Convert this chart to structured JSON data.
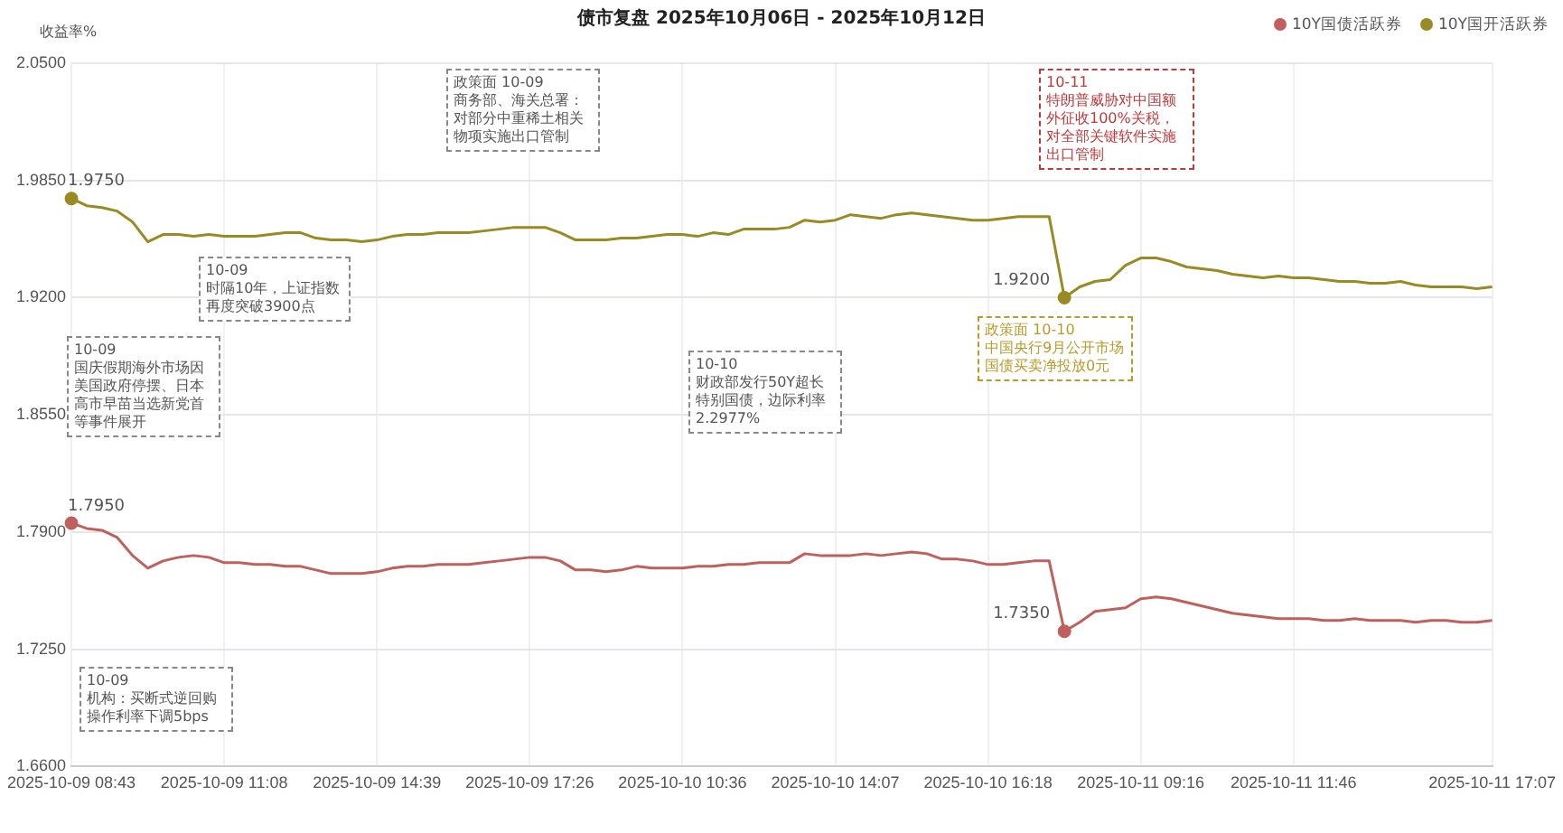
{
  "chart_data": {
    "type": "line",
    "title": "债市复盘 2025年10月06日 - 2025年10月12日",
    "ylabel": "收益率%",
    "categories": [
      "2025-10-09 08:43",
      null,
      null,
      null,
      null,
      null,
      null,
      null,
      null,
      null,
      "2025-10-09 11:08",
      null,
      null,
      null,
      null,
      null,
      null,
      null,
      null,
      null,
      "2025-10-09 14:39",
      null,
      null,
      null,
      null,
      null,
      null,
      null,
      null,
      null,
      "2025-10-09 17:26",
      null,
      null,
      null,
      null,
      null,
      null,
      null,
      null,
      null,
      "2025-10-10 10:36",
      null,
      null,
      null,
      null,
      null,
      null,
      null,
      null,
      null,
      "2025-10-10 14:07",
      null,
      null,
      null,
      null,
      null,
      null,
      null,
      null,
      null,
      "2025-10-10 16:18",
      null,
      null,
      null,
      null,
      null,
      null,
      null,
      null,
      null,
      "2025-10-11 09:16",
      null,
      null,
      null,
      null,
      null,
      null,
      null,
      null,
      null,
      "2025-10-11 11:46",
      null,
      null,
      null,
      null,
      null,
      null,
      null,
      null,
      null,
      null,
      null,
      null,
      "2025-10-11 17:07"
    ],
    "series": [
      {
        "name": "10Y国债活跃券",
        "color": "#c0605c",
        "values": [
          1.795,
          1.792,
          1.791,
          1.787,
          1.777,
          1.77,
          1.774,
          1.776,
          1.777,
          1.776,
          1.773,
          1.773,
          1.772,
          1.772,
          1.771,
          1.771,
          1.769,
          1.767,
          1.767,
          1.767,
          1.768,
          1.77,
          1.771,
          1.771,
          1.772,
          1.772,
          1.772,
          1.773,
          1.774,
          1.775,
          1.776,
          1.776,
          1.774,
          1.769,
          1.769,
          1.768,
          1.769,
          1.771,
          1.77,
          1.77,
          1.77,
          1.771,
          1.771,
          1.772,
          1.772,
          1.773,
          1.773,
          1.773,
          1.778,
          1.777,
          1.777,
          1.777,
          1.778,
          1.777,
          1.778,
          1.779,
          1.778,
          1.775,
          1.775,
          1.774,
          1.772,
          1.772,
          1.773,
          1.774,
          1.774,
          1.735,
          1.74,
          1.746,
          1.747,
          1.748,
          1.753,
          1.754,
          1.753,
          1.751,
          1.749,
          1.747,
          1.745,
          1.744,
          1.743,
          1.742,
          1.742,
          1.742,
          1.741,
          1.741,
          1.742,
          1.741,
          1.741,
          1.741,
          1.74,
          1.741,
          1.741,
          1.74,
          1.74,
          1.741
        ],
        "value_labels": [
          "1.7950",
          null,
          null,
          null,
          null,
          null,
          null,
          null,
          null,
          null,
          null,
          null,
          null,
          null,
          null,
          null,
          null,
          null,
          null,
          null,
          null,
          null,
          null,
          null,
          null,
          null,
          null,
          null,
          null,
          null,
          null,
          null,
          null,
          null,
          null,
          null,
          null,
          null,
          null,
          null,
          null,
          null,
          null,
          null,
          null,
          null,
          null,
          null,
          null,
          null,
          null,
          null,
          null,
          null,
          null,
          null,
          null,
          null,
          null,
          null,
          null,
          null,
          null,
          null,
          null,
          "1.7350",
          null,
          null,
          null,
          null,
          null,
          null,
          null,
          null,
          null,
          null,
          null,
          null,
          null,
          null,
          null,
          null,
          null,
          null,
          null,
          null,
          null,
          null,
          null,
          null,
          null,
          null,
          null,
          null
        ]
      },
      {
        "name": "10Y国开活跃券",
        "color": "#9a8a23",
        "values": [
          1.975,
          1.971,
          1.97,
          1.968,
          1.962,
          1.951,
          1.955,
          1.955,
          1.954,
          1.955,
          1.954,
          1.954,
          1.954,
          1.955,
          1.956,
          1.956,
          1.953,
          1.952,
          1.952,
          1.951,
          1.952,
          1.954,
          1.955,
          1.955,
          1.956,
          1.956,
          1.956,
          1.957,
          1.958,
          1.959,
          1.959,
          1.959,
          1.956,
          1.952,
          1.952,
          1.952,
          1.953,
          1.953,
          1.954,
          1.955,
          1.955,
          1.954,
          1.956,
          1.955,
          1.958,
          1.958,
          1.958,
          1.959,
          1.963,
          1.962,
          1.963,
          1.966,
          1.965,
          1.964,
          1.966,
          1.967,
          1.966,
          1.965,
          1.964,
          1.963,
          1.963,
          1.964,
          1.965,
          1.965,
          1.965,
          1.92,
          1.926,
          1.929,
          1.93,
          1.938,
          1.942,
          1.942,
          1.94,
          1.937,
          1.936,
          1.935,
          1.933,
          1.932,
          1.931,
          1.932,
          1.931,
          1.931,
          1.93,
          1.929,
          1.929,
          1.928,
          1.928,
          1.929,
          1.927,
          1.926,
          1.926,
          1.926,
          1.925,
          1.926
        ],
        "value_labels": [
          "1.9750",
          null,
          null,
          null,
          null,
          null,
          null,
          null,
          null,
          null,
          null,
          null,
          null,
          null,
          null,
          null,
          null,
          null,
          null,
          null,
          null,
          null,
          null,
          null,
          null,
          null,
          null,
          null,
          null,
          null,
          null,
          null,
          null,
          null,
          null,
          null,
          null,
          null,
          null,
          null,
          null,
          null,
          null,
          null,
          null,
          null,
          null,
          null,
          null,
          null,
          null,
          null,
          null,
          null,
          null,
          null,
          null,
          null,
          null,
          null,
          null,
          null,
          null,
          null,
          null,
          "1.9200",
          null,
          null,
          null,
          null,
          null,
          null,
          null,
          null,
          null,
          null,
          null,
          null,
          null,
          null,
          null,
          null,
          null,
          null,
          null,
          null,
          null,
          null,
          null,
          null,
          null,
          null,
          null,
          null
        ]
      }
    ],
    "ylim": [
      1.66,
      2.05
    ],
    "yticks": [
      {
        "value": 1.66,
        "label": "1.6600"
      },
      {
        "value": 1.725,
        "label": "1.7250"
      },
      {
        "value": 1.79,
        "label": "1.7900"
      },
      {
        "value": 1.855,
        "label": "1.8550"
      },
      {
        "value": 1.92,
        "label": "1.9200"
      },
      {
        "value": 1.985,
        "label": "1.9850"
      },
      {
        "value": 2.05,
        "label": "2.0500"
      }
    ],
    "grid": true,
    "legend": "top right",
    "annotations": [
      "10-09\n国庆假期海外市场因美国政府停摆、日本高市早苗当选新党首等事件展开",
      "10-09\n时隔10年，上证指数再度突破3900点",
      "政策面 10-09\n商务部、海关总署：对部分中重稀土相关物项实施出口管制",
      "10-10\n财政部发行50Y超长特别国债，边际利率2.2977%",
      "10-11\n特朗普威胁对中国额外征收100%关税，对全部关键软件实施出口管制",
      "政策面 10-10\n中国央行9月公开市场国债买卖净投放0元",
      "10-09\n机构：买断式逆回购操作利率下调5bps"
    ]
  }
}
